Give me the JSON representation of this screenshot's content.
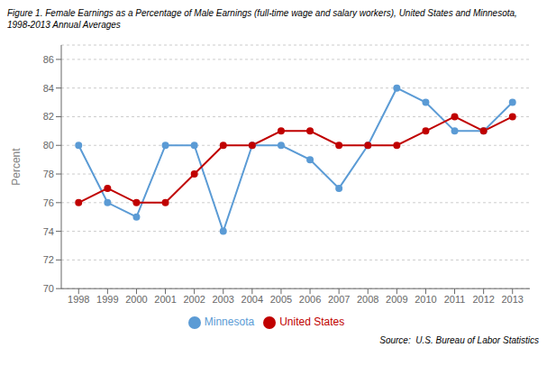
{
  "chart_data": {
    "type": "line",
    "title": "Figure 1. Female Earnings as a Percentage of Male Earnings (full-time wage and salary workers), United States and Minnesota,\n1998-2013 Annual Averages",
    "x": [
      1998,
      1999,
      2000,
      2001,
      2002,
      2003,
      2004,
      2005,
      2006,
      2007,
      2008,
      2009,
      2010,
      2011,
      2012,
      2013
    ],
    "series": [
      {
        "name": "Minnesota",
        "color": "#5B9BD5",
        "marker": "circle",
        "values": [
          80.0,
          76.0,
          75.0,
          80.0,
          80.0,
          74.0,
          80.0,
          80.0,
          79.0,
          77.0,
          80.0,
          84.0,
          83.0,
          81.0,
          81.0,
          83.0
        ]
      },
      {
        "name": "United States",
        "color": "#C00000",
        "marker": "circle",
        "values": [
          76.0,
          77.0,
          76.0,
          76.0,
          78.0,
          80.0,
          80.0,
          81.0,
          81.0,
          80.0,
          80.0,
          80.0,
          81.0,
          82.0,
          81.0,
          82.0
        ]
      }
    ],
    "xlim": [
      1997.4,
      2013.6
    ],
    "xticks": [
      1998,
      1999,
      2000,
      2001,
      2002,
      2003,
      2004,
      2005,
      2006,
      2007,
      2008,
      2009,
      2010,
      2011,
      2012,
      2013
    ],
    "ylabel": "Percent",
    "ylim": [
      70,
      87
    ],
    "yticks": [
      70,
      72,
      74,
      76,
      78,
      80,
      82,
      84,
      86
    ],
    "grid": "y",
    "legend": "bottom",
    "annotations": [
      "Source:  U.S. Bureau of Labor Statistics"
    ]
  }
}
